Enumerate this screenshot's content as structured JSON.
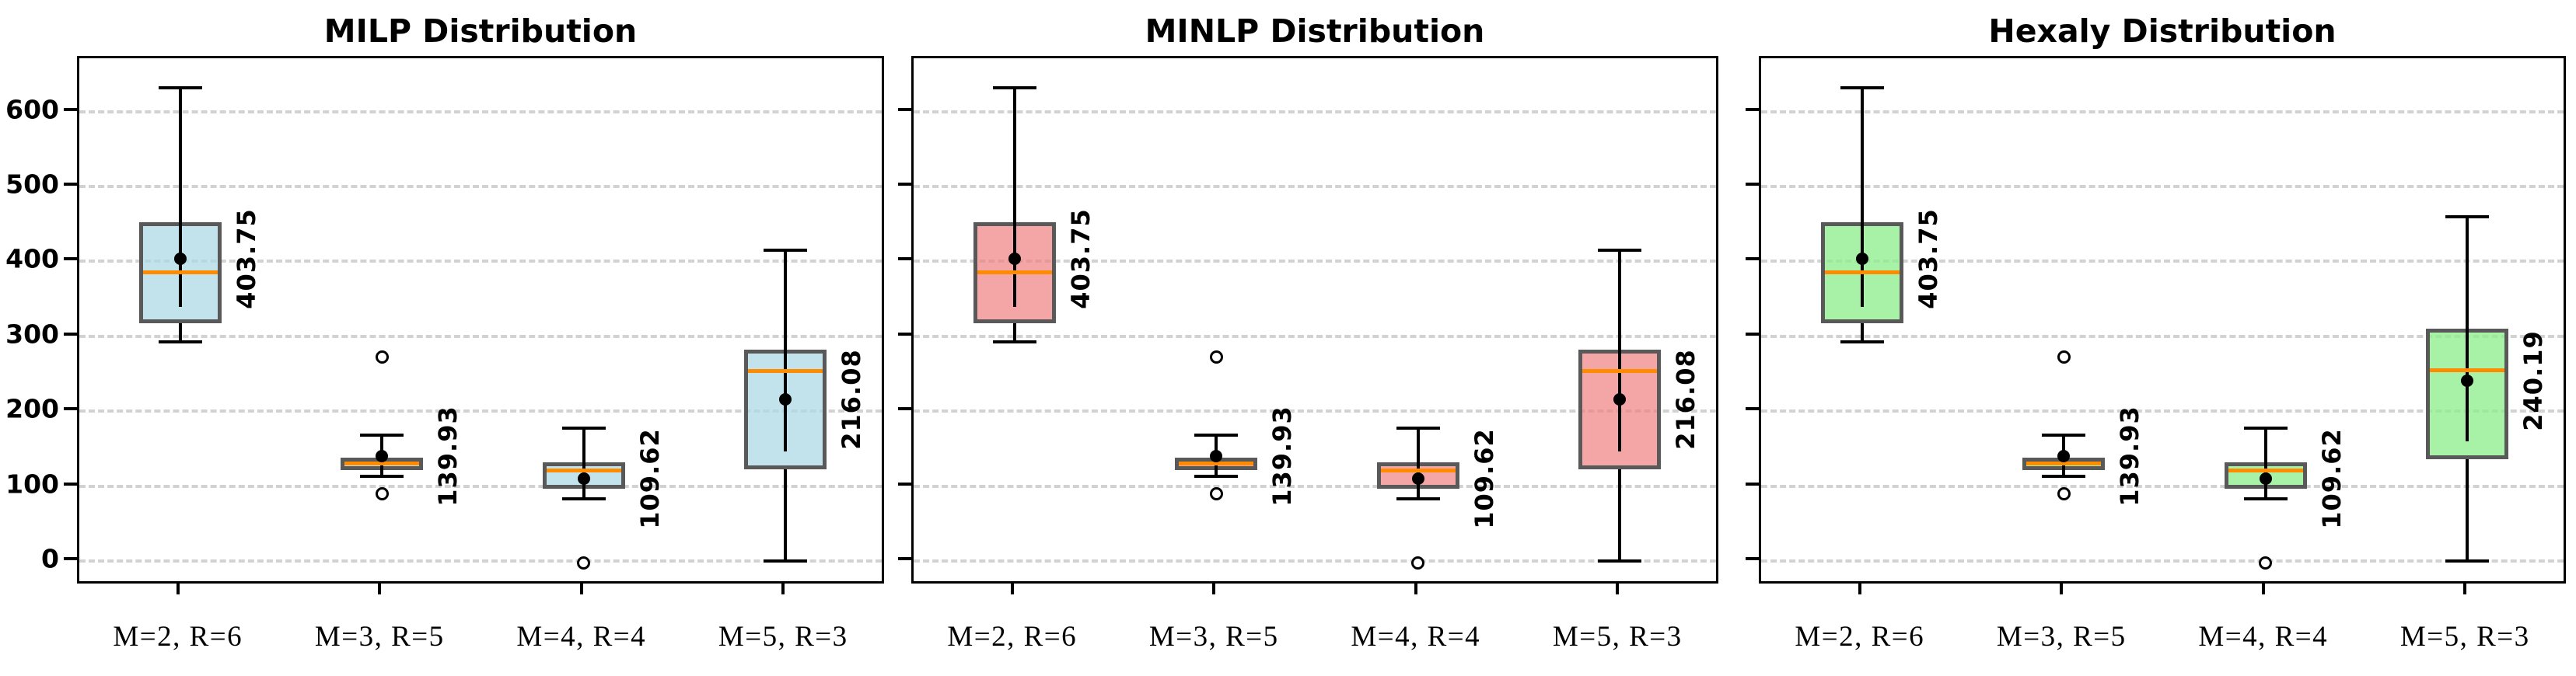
{
  "figure": {
    "y_ticks": [
      0,
      100,
      200,
      300,
      400,
      500,
      600
    ],
    "categories": [
      "M=2, R=6",
      "M=3, R=5",
      "M=4, R=4",
      "M=5, R=3"
    ],
    "ylim": [
      -38,
      666
    ],
    "grid": "dashed-horizontal",
    "colors": {
      "background": "#ffffff",
      "spine": "#000000",
      "grid": "#d2d2d2",
      "whisker": "#000000",
      "box_edge": "#595959",
      "median": "#ff8c00",
      "mean_marker": "#000000",
      "milp_fill": "rgba(173,216,230,0.75)",
      "minlp_fill": "rgba(240,128,128,0.70)",
      "hexaly_fill": "rgba(144,238,144,0.78)"
    }
  },
  "chart_data": [
    {
      "type": "boxplot",
      "title": "MILP Distribution",
      "fill": "rgba(173,216,230,0.75)",
      "boxes": [
        {
          "category": "M=2, R=6",
          "whisker_low": 293,
          "q1": 317,
          "median": 385,
          "q3": 452,
          "whisker_high": 632,
          "mean": 403.75,
          "mean_label": "403.75",
          "errbar": [
            339,
            468
          ],
          "outliers": []
        },
        {
          "category": "M=3, R=5",
          "whisker_low": 113,
          "q1": 121,
          "median": 130,
          "q3": 138,
          "whisker_high": 168,
          "mean": 139.93,
          "mean_label": "139.93",
          "errbar": [
            113,
            167
          ],
          "outliers": [
            272,
            90
          ]
        },
        {
          "category": "M=4, R=4",
          "whisker_low": 83,
          "q1": 96,
          "median": 121,
          "q3": 132,
          "whisker_high": 177,
          "mean": 109.62,
          "mean_label": "109.62",
          "errbar": [
            83,
            136
          ],
          "outliers": [
            -3
          ]
        },
        {
          "category": "M=5, R=3",
          "whisker_low": 0,
          "q1": 122,
          "median": 254,
          "q3": 282,
          "whisker_high": 415,
          "mean": 216.08,
          "mean_label": "216.08",
          "errbar": [
            146,
            286
          ],
          "outliers": []
        }
      ]
    },
    {
      "type": "boxplot",
      "title": "MINLP Distribution",
      "fill": "rgba(240,128,128,0.70)",
      "boxes": [
        {
          "category": "M=2, R=6",
          "whisker_low": 293,
          "q1": 317,
          "median": 385,
          "q3": 452,
          "whisker_high": 632,
          "mean": 403.75,
          "mean_label": "403.75",
          "errbar": [
            339,
            468
          ],
          "outliers": []
        },
        {
          "category": "M=3, R=5",
          "whisker_low": 113,
          "q1": 121,
          "median": 130,
          "q3": 138,
          "whisker_high": 168,
          "mean": 139.93,
          "mean_label": "139.93",
          "errbar": [
            113,
            167
          ],
          "outliers": [
            272,
            90
          ]
        },
        {
          "category": "M=4, R=4",
          "whisker_low": 83,
          "q1": 96,
          "median": 121,
          "q3": 132,
          "whisker_high": 177,
          "mean": 109.62,
          "mean_label": "109.62",
          "errbar": [
            83,
            136
          ],
          "outliers": [
            -3
          ]
        },
        {
          "category": "M=5, R=3",
          "whisker_low": 0,
          "q1": 122,
          "median": 254,
          "q3": 282,
          "whisker_high": 415,
          "mean": 216.08,
          "mean_label": "216.08",
          "errbar": [
            146,
            286
          ],
          "outliers": []
        }
      ]
    },
    {
      "type": "boxplot",
      "title": "Hexaly Distribution",
      "fill": "rgba(144,238,144,0.78)",
      "boxes": [
        {
          "category": "M=2, R=6",
          "whisker_low": 293,
          "q1": 317,
          "median": 385,
          "q3": 452,
          "whisker_high": 632,
          "mean": 403.75,
          "mean_label": "403.75",
          "errbar": [
            339,
            468
          ],
          "outliers": []
        },
        {
          "category": "M=3, R=5",
          "whisker_low": 113,
          "q1": 121,
          "median": 130,
          "q3": 138,
          "whisker_high": 168,
          "mean": 139.93,
          "mean_label": "139.93",
          "errbar": [
            113,
            167
          ],
          "outliers": [
            272,
            90
          ]
        },
        {
          "category": "M=4, R=4",
          "whisker_low": 83,
          "q1": 96,
          "median": 121,
          "q3": 132,
          "whisker_high": 177,
          "mean": 109.62,
          "mean_label": "109.62",
          "errbar": [
            83,
            136
          ],
          "outliers": [
            -3
          ]
        },
        {
          "category": "M=5, R=3",
          "whisker_low": 0,
          "q1": 136,
          "median": 255,
          "q3": 310,
          "whisker_high": 460,
          "mean": 240.19,
          "mean_label": "240.19",
          "errbar": [
            160,
            320
          ],
          "outliers": []
        }
      ]
    }
  ]
}
